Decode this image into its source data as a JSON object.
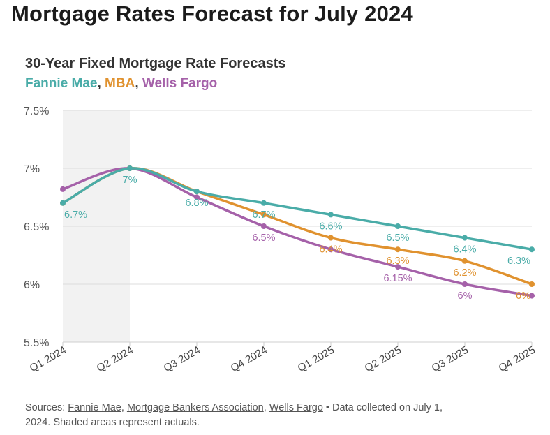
{
  "headline": "Mortgage Rates Forecast for July 2024",
  "chart_data": {
    "type": "line",
    "title": "30-Year Fixed Mortgage Rate Forecasts",
    "categories": [
      "Q1 2024",
      "Q2 2024",
      "Q3 2024",
      "Q4 2024",
      "Q1 2025",
      "Q2 2025",
      "Q3 2025",
      "Q4 2025"
    ],
    "ylim": [
      5.5,
      7.5
    ],
    "yticks": [
      5.5,
      6,
      6.5,
      7,
      7.5
    ],
    "ytick_labels": [
      "5.5%",
      "6%",
      "6.5%",
      "7%",
      "7.5%"
    ],
    "grid": true,
    "shaded_actuals": [
      "Q1 2024",
      "Q2 2024"
    ],
    "series": [
      {
        "name": "Fannie Mae",
        "color": "#4aaca8",
        "values": [
          6.7,
          7.0,
          6.8,
          6.7,
          6.6,
          6.5,
          6.4,
          6.3
        ],
        "labels": [
          "6.7%",
          "7%",
          "6.8%",
          "6.7%",
          "6.6%",
          "6.5%",
          "6.4%",
          "6.3%"
        ]
      },
      {
        "name": "MBA",
        "color": "#e0922f",
        "values": [
          6.7,
          7.0,
          6.8,
          6.6,
          6.4,
          6.3,
          6.2,
          6.0
        ],
        "labels": [
          "",
          "",
          "",
          "",
          "6.4%",
          "6.3%",
          "6.2%",
          "6%"
        ]
      },
      {
        "name": "Wells Fargo",
        "color": "#a561a9",
        "values": [
          6.82,
          7.0,
          6.75,
          6.5,
          6.3,
          6.15,
          6.0,
          5.9
        ],
        "labels": [
          "",
          "",
          "",
          "6.5%",
          "",
          "6.15%",
          "6%",
          ""
        ]
      }
    ]
  },
  "legend": {
    "items": [
      "Fannie Mae",
      "MBA",
      "Wells Fargo"
    ],
    "separator": ","
  },
  "footer": {
    "prefix": "Sources: ",
    "sources": [
      "Fannie Mae",
      "Mortgage Bankers Association",
      "Wells Fargo"
    ],
    "suffix": " • Data collected on July 1, 2024. Shaded areas represent actuals."
  }
}
